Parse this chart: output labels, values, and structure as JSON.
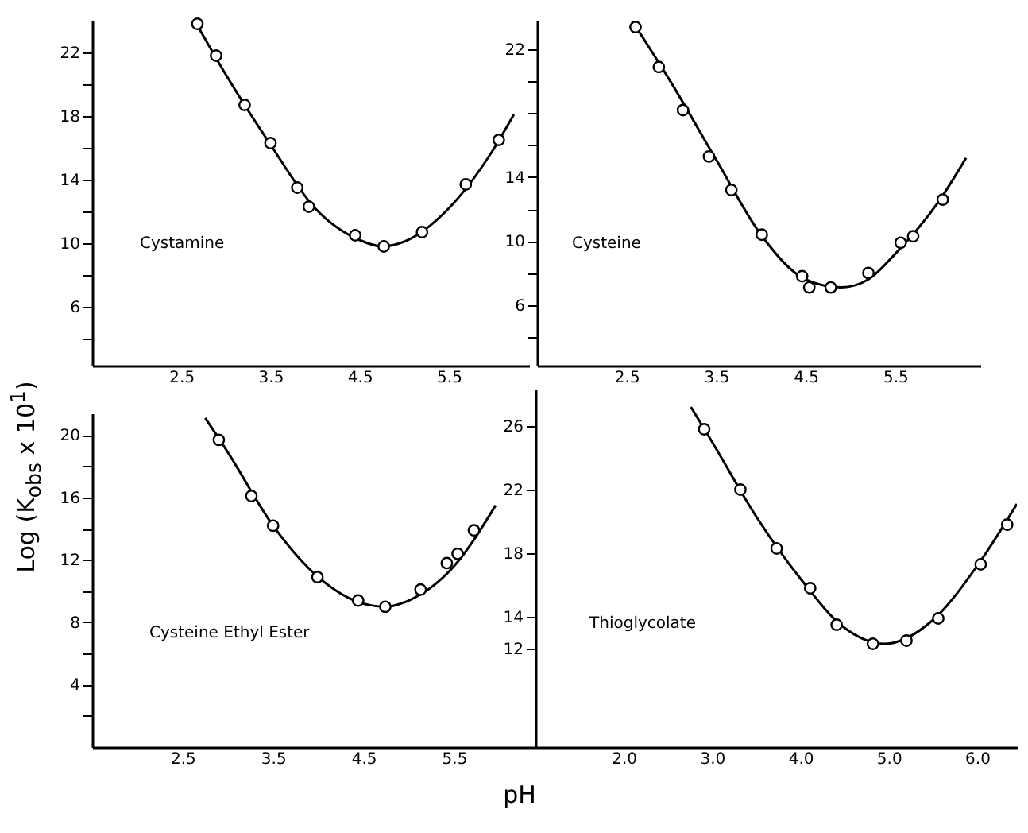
{
  "chart_data": [
    {
      "type": "scatter",
      "ylabel": "Log (K$_{obs}$ x 10$^{1}$)",
      "annotations": [
        "Cystamine"
      ],
      "xlim": [
        1.5,
        6.4
      ],
      "xticks": [
        2.5,
        3.5,
        4.5,
        5.5
      ],
      "ylim": [
        2.3,
        24
      ],
      "yticks": [
        {
          "value": 4,
          "label": null
        },
        6,
        {
          "value": 8,
          "label": null
        },
        10,
        {
          "value": 12,
          "label": null
        },
        14,
        {
          "value": 16,
          "label": null
        },
        18,
        {
          "value": 20,
          "label": null
        },
        22
      ],
      "series": [
        {
          "color": "#000000",
          "marker": "circle",
          "x": [
            2.68,
            2.89,
            3.21,
            3.5,
            3.8,
            3.93,
            4.45,
            4.77,
            5.2,
            5.69,
            6.06
          ],
          "values": [
            23.8,
            21.8,
            18.7,
            16.3,
            13.5,
            12.3,
            10.5,
            9.8,
            10.7,
            13.7,
            16.5
          ]
        },
        {
          "type": "line",
          "color": "#000000",
          "x": [
            2.65,
            3.0,
            3.5,
            4.0,
            4.5,
            4.75,
            5.0,
            5.5,
            6.0,
            6.23
          ],
          "values": [
            24.0,
            20.6,
            16.2,
            12.2,
            10.2,
            9.8,
            10.1,
            12.2,
            15.9,
            18.1
          ]
        }
      ]
    },
    {
      "type": "scatter",
      "annotations": [
        "Cysteine"
      ],
      "xlim": [
        1.5,
        6.45
      ],
      "xticks": [
        2.5,
        3.5,
        4.5,
        5.5
      ],
      "ylim": [
        2.2,
        23.8
      ],
      "yticks": [
        {
          "value": 4,
          "label": null
        },
        6,
        {
          "value": 8,
          "label": null
        },
        10,
        {
          "value": 12,
          "label": null
        },
        14,
        {
          "value": 16,
          "label": null
        },
        {
          "value": 18,
          "label": null
        },
        {
          "value": 20,
          "label": null
        },
        22
      ],
      "series": [
        {
          "color": "#000000",
          "marker": "circle",
          "x": [
            2.6,
            2.86,
            3.13,
            3.42,
            3.67,
            4.01,
            4.46,
            4.54,
            4.78,
            5.2,
            5.56,
            5.7,
            6.03
          ],
          "values": [
            23.4,
            20.9,
            18.2,
            15.3,
            13.2,
            10.4,
            7.8,
            7.1,
            7.1,
            8.0,
            9.9,
            10.3,
            12.6
          ]
        },
        {
          "type": "line",
          "color": "#000000",
          "x": [
            2.56,
            3.0,
            3.5,
            4.0,
            4.5,
            4.9,
            5.2,
            5.5,
            6.0,
            6.29
          ],
          "values": [
            23.8,
            19.9,
            15.1,
            10.4,
            7.6,
            7.1,
            7.6,
            9.2,
            12.6,
            15.2
          ]
        }
      ]
    },
    {
      "type": "scatter",
      "annotations": [
        "Cysteine Ethyl Ester"
      ],
      "xlim": [
        1.5,
        6.4
      ],
      "xticks": [
        2.5,
        3.5,
        4.5,
        5.5
      ],
      "ylim": [
        0,
        21.4
      ],
      "yticks": [
        {
          "value": 2,
          "label": null
        },
        4,
        {
          "value": 6,
          "label": null
        },
        8,
        {
          "value": 10,
          "label": null
        },
        12,
        {
          "value": 14,
          "label": null
        },
        16,
        {
          "value": 18,
          "label": null
        },
        20
      ],
      "series": [
        {
          "color": "#000000",
          "marker": "circle",
          "x": [
            2.9,
            3.26,
            3.5,
            3.99,
            4.44,
            4.74,
            5.13,
            5.42,
            5.54,
            5.72
          ],
          "values": [
            19.7,
            16.1,
            14.2,
            10.9,
            9.4,
            9.0,
            10.1,
            11.8,
            12.4,
            13.9
          ]
        },
        {
          "type": "line",
          "color": "#000000",
          "x": [
            2.75,
            3.0,
            3.5,
            4.0,
            4.5,
            4.75,
            5.0,
            5.5,
            5.96
          ],
          "values": [
            21.1,
            18.9,
            14.2,
            10.9,
            9.2,
            9.0,
            9.4,
            11.6,
            15.5
          ]
        }
      ]
    },
    {
      "type": "scatter",
      "xlabel": "pH",
      "annotations": [
        "Thioglycolate"
      ],
      "xlim": [
        1.0,
        6.45
      ],
      "xticks": [
        {
          "value": 2,
          "label": "2.0"
        },
        {
          "value": 3,
          "label": "3.0"
        },
        {
          "value": 4,
          "label": "4.0"
        },
        {
          "value": 5,
          "label": "5.0"
        },
        {
          "value": 6,
          "label": "6.0"
        }
      ],
      "ylim": [
        5.8,
        28.3
      ],
      "yticks": [
        12,
        14,
        18,
        22,
        26
      ],
      "series": [
        {
          "color": "#000000",
          "marker": "circle",
          "x": [
            2.91,
            3.32,
            3.73,
            4.11,
            4.41,
            4.82,
            5.2,
            5.56,
            6.04,
            6.34
          ],
          "values": [
            25.8,
            22.0,
            18.3,
            15.8,
            13.5,
            12.3,
            12.5,
            13.9,
            17.3,
            19.8
          ]
        },
        {
          "type": "line",
          "color": "#000000",
          "x": [
            2.76,
            3.0,
            3.5,
            4.0,
            4.5,
            4.95,
            5.5,
            6.0,
            6.45
          ],
          "values": [
            27.2,
            25.0,
            20.3,
            16.4,
            13.3,
            12.3,
            13.8,
            17.2,
            21.1
          ]
        }
      ]
    }
  ]
}
